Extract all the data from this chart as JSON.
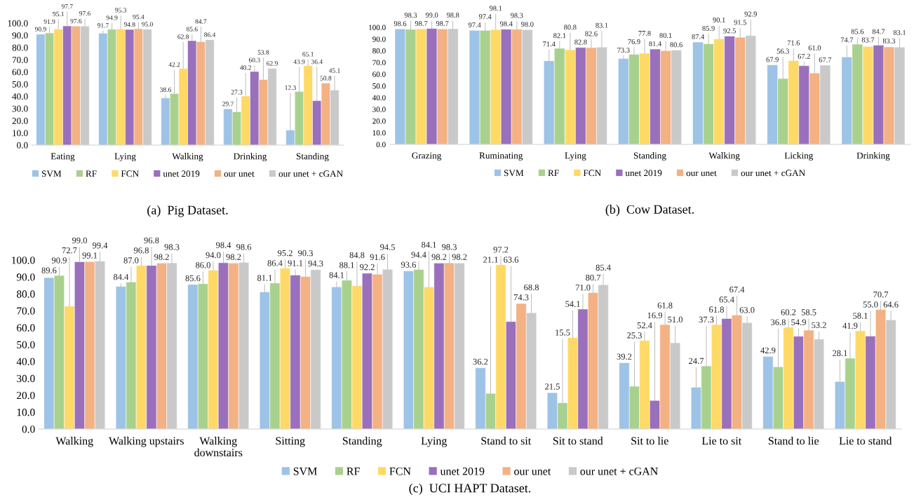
{
  "chart_data": [
    {
      "type": "bar",
      "categories": [
        "Eating",
        "Lying",
        "Walking",
        "Drinking",
        "Standing"
      ],
      "ylim": [
        0,
        100
      ],
      "yticks": [
        {
          "value": 0,
          "label": "0.0"
        },
        {
          "value": 10,
          "label": "10.0"
        },
        {
          "value": 20,
          "label": "20.0"
        },
        {
          "value": 30,
          "label": "30.0"
        },
        {
          "value": 40,
          "label": "40.0"
        },
        {
          "value": 50,
          "label": "50.0"
        },
        {
          "value": 60,
          "label": "60.0"
        },
        {
          "value": 70,
          "label": "70.0"
        },
        {
          "value": 80,
          "label": "80.0"
        },
        {
          "value": 90,
          "label": "90.0"
        },
        {
          "value": 100,
          "label": "100.0"
        }
      ],
      "series": [
        {
          "name": "SVM",
          "color": "#9dc3e6",
          "values": [
            90.9,
            91.7,
            38.6,
            29.7,
            12.3
          ],
          "value_labels": [
            "90.9",
            "91.7",
            "38.6",
            "29.7",
            "12.3"
          ]
        },
        {
          "name": "RF",
          "color": "#a9d18e",
          "values": [
            91.9,
            94.9,
            42.2,
            27.3,
            43.9
          ],
          "value_labels": [
            "91.9",
            "94.9",
            "42.2",
            "27.3",
            "43.9"
          ]
        },
        {
          "name": "FCN",
          "color": "#ffd966",
          "values": [
            95.1,
            95.3,
            62.8,
            40.2,
            65.1
          ],
          "value_labels": [
            "95.1",
            "95.3",
            "62.8",
            "40.2",
            "65.1"
          ]
        },
        {
          "name": "unet 2019",
          "color": "#9a6fbc",
          "values": [
            97.7,
            94.8,
            85.6,
            60.3,
            36.4
          ],
          "value_labels": [
            "97.7",
            "94.8",
            "85.6",
            "60.3",
            "36.4"
          ]
        },
        {
          "name": "our unet",
          "color": "#f4b183",
          "values": [
            97.6,
            95.4,
            84.7,
            53.8,
            50.8
          ],
          "value_labels": [
            "97.6",
            "95.4",
            "84.7",
            "53.8",
            "50.8"
          ]
        },
        {
          "name": "our unet + cGAN",
          "color": "#c9c9c9",
          "values": [
            97.6,
            95.0,
            86.4,
            62.9,
            45.1
          ],
          "value_labels": [
            "97.6",
            "95.0",
            "86.4",
            "62.9",
            "45.1"
          ]
        }
      ],
      "legend": "bottom",
      "grid": false,
      "annotations": [
        "(a)  Pig Dataset."
      ]
    },
    {
      "type": "bar",
      "categories": [
        "Grazing",
        "Ruminating",
        "Lying",
        "Standing",
        "Walking",
        "Licking",
        "Drinking"
      ],
      "ylim": [
        0,
        100
      ],
      "yticks": [
        {
          "value": 0,
          "label": "0.0"
        },
        {
          "value": 10,
          "label": "10.0"
        },
        {
          "value": 20,
          "label": "20.0"
        },
        {
          "value": 30,
          "label": "30.0"
        },
        {
          "value": 40,
          "label": "40.0"
        },
        {
          "value": 50,
          "label": "50.0"
        },
        {
          "value": 60,
          "label": "60.0"
        },
        {
          "value": 70,
          "label": "70.0"
        },
        {
          "value": 80,
          "label": "80.0"
        },
        {
          "value": 90,
          "label": "90.0"
        },
        {
          "value": 100,
          "label": "100.0"
        }
      ],
      "series": [
        {
          "name": "SVM",
          "color": "#9dc3e6",
          "values": [
            98.6,
            97.4,
            71.4,
            73.3,
            87.4,
            67.9,
            74.7
          ],
          "value_labels": [
            "98.6",
            "97.4",
            "71.4",
            "73.3",
            "87.4",
            "67.9",
            "74.7"
          ]
        },
        {
          "name": "RF",
          "color": "#a9d18e",
          "values": [
            98.3,
            97.4,
            82.1,
            76.9,
            85.9,
            56.3,
            85.6
          ],
          "value_labels": [
            "98.3",
            "97.4",
            "82.1",
            "76.9",
            "85.9",
            "56.3",
            "85.6"
          ]
        },
        {
          "name": "FCN",
          "color": "#ffd966",
          "values": [
            98.7,
            98.1,
            80.8,
            77.8,
            90.1,
            71.6,
            83.7
          ],
          "value_labels": [
            "98.7",
            "98.1",
            "80.8",
            "77.8",
            "90.1",
            "71.6",
            "83.7"
          ]
        },
        {
          "name": "unet 2019",
          "color": "#9a6fbc",
          "values": [
            99.0,
            98.4,
            82.8,
            81.4,
            92.5,
            67.2,
            84.7
          ],
          "value_labels": [
            "99.0",
            "98.4",
            "82.8",
            "81.4",
            "92.5",
            "67.2",
            "84.7"
          ]
        },
        {
          "name": "our unet",
          "color": "#f4b183",
          "values": [
            98.7,
            98.3,
            82.6,
            80.1,
            91.5,
            61.0,
            83.3
          ],
          "value_labels": [
            "98.7",
            "98.3",
            "82.6",
            "80.1",
            "91.5",
            "61.0",
            "83.3"
          ]
        },
        {
          "name": "our unet + cGAN",
          "color": "#c9c9c9",
          "values": [
            98.8,
            98.0,
            83.1,
            80.6,
            92.9,
            67.7,
            83.1
          ],
          "value_labels": [
            "98.8",
            "98.0",
            "83.1",
            "80.6",
            "92.9",
            "67.7",
            "83.1"
          ]
        }
      ],
      "legend": "bottom",
      "grid": false,
      "annotations": [
        "(b)  Cow Dataset."
      ]
    },
    {
      "type": "bar",
      "categories": [
        "Walking",
        "Walking upstairs",
        "Walking downstairs",
        "Sitting",
        "Standing",
        "Lying",
        "Stand to sit",
        "Sit to stand",
        "Sit to lie",
        "Lie to sit",
        "Stand to lie",
        "Lie to stand"
      ],
      "ylim": [
        0,
        100
      ],
      "yticks": [
        {
          "value": 0,
          "label": "0.0"
        },
        {
          "value": 10,
          "label": "10.0"
        },
        {
          "value": 20,
          "label": "20.0"
        },
        {
          "value": 30,
          "label": "30.0"
        },
        {
          "value": 40,
          "label": "40.0"
        },
        {
          "value": 50,
          "label": "50.0"
        },
        {
          "value": 60,
          "label": "60.0"
        },
        {
          "value": 70,
          "label": "70.0"
        },
        {
          "value": 80,
          "label": "80.0"
        },
        {
          "value": 90,
          "label": "90.0"
        },
        {
          "value": 100,
          "label": "100.0"
        }
      ],
      "series": [
        {
          "name": "SVM",
          "color": "#9dc3e6",
          "values": [
            89.6,
            84.4,
            85.6,
            81.1,
            84.1,
            93.6,
            36.2,
            21.5,
            39.2,
            24.7,
            42.9,
            28.1
          ],
          "value_labels": [
            "89.6",
            "84.4",
            "85.6",
            "81.1",
            "84.1",
            "93.6",
            "36.2",
            "21.5",
            "39.2",
            "24.7",
            "42.9",
            "28.1"
          ]
        },
        {
          "name": "RF",
          "color": "#a9d18e",
          "values": [
            90.9,
            87.0,
            86.0,
            86.4,
            88.1,
            94.4,
            21.1,
            15.5,
            25.3,
            37.3,
            36.8,
            41.9
          ],
          "value_labels": [
            "90.9",
            "87.0",
            "86.0",
            "86.4",
            "88.1",
            "94.4",
            "21.1",
            "15.5",
            "25.3",
            "37.3",
            "36.8",
            "41.9"
          ]
        },
        {
          "name": "FCN",
          "color": "#ffd966",
          "values": [
            72.7,
            96.8,
            94.0,
            95.2,
            84.8,
            84.1,
            97.2,
            54.1,
            52.4,
            61.8,
            60.2,
            58.1
          ],
          "value_labels": [
            "72.7",
            "96.8",
            "94.0",
            "95.2",
            "84.8",
            "84.1",
            "97.2",
            "54.1",
            "52.4",
            "61.8",
            "60.2",
            "58.1"
          ]
        },
        {
          "name": "unet 2019",
          "color": "#9a6fbc",
          "values": [
            99.0,
            96.8,
            98.4,
            91.1,
            92.2,
            98.2,
            63.6,
            71.0,
            16.9,
            65.4,
            54.9,
            55.0
          ],
          "value_labels": [
            "99.0",
            "96.8",
            "98.4",
            "91.1",
            "92.2",
            "98.2",
            "63.6",
            "71.0",
            "16.9",
            "65.4",
            "54.9",
            "55.0"
          ]
        },
        {
          "name": "our unet",
          "color": "#f4b183",
          "values": [
            99.1,
            98.2,
            98.2,
            90.3,
            91.6,
            98.3,
            74.3,
            80.7,
            61.8,
            67.4,
            58.5,
            70.7
          ],
          "value_labels": [
            "99.1",
            "98.2",
            "98.2",
            "90.3",
            "91.6",
            "98.3",
            "74.3",
            "80.7",
            "61.8",
            "67.4",
            "58.5",
            "70.7"
          ]
        },
        {
          "name": "our unet + cGAN",
          "color": "#c9c9c9",
          "values": [
            99.4,
            98.3,
            98.6,
            94.3,
            94.5,
            98.2,
            68.8,
            85.4,
            51.0,
            63.0,
            53.2,
            64.6
          ],
          "value_labels": [
            "99.4",
            "98.3",
            "98.6",
            "94.3",
            "94.5",
            "98.2",
            "68.8",
            "85.4",
            "51.0",
            "63.0",
            "53.2",
            "64.6"
          ]
        }
      ],
      "legend": "bottom",
      "grid": false,
      "annotations": [
        "(c)  UCI HAPT Dataset."
      ]
    }
  ]
}
